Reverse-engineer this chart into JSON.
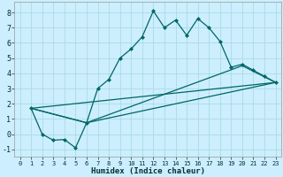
{
  "title": "",
  "xlabel": "Humidex (Indice chaleur)",
  "background_color": "#cceeff",
  "grid_color": "#aadddd",
  "line_color": "#006666",
  "xlim": [
    -0.5,
    23.5
  ],
  "ylim": [
    -1.5,
    8.7
  ],
  "xticks": [
    0,
    1,
    2,
    3,
    4,
    5,
    6,
    7,
    8,
    9,
    10,
    11,
    12,
    13,
    14,
    15,
    16,
    17,
    18,
    19,
    20,
    21,
    22,
    23
  ],
  "yticks": [
    -1,
    0,
    1,
    2,
    3,
    4,
    5,
    6,
    7,
    8
  ],
  "lines": [
    {
      "x": [
        1,
        2,
        3,
        4,
        5,
        6,
        7,
        8,
        9,
        10,
        11,
        12,
        13,
        14,
        15,
        16,
        17,
        18,
        19,
        20,
        21,
        22,
        23
      ],
      "y": [
        1.7,
        0.0,
        -0.4,
        -0.35,
        -0.9,
        0.75,
        3.0,
        3.6,
        5.0,
        5.6,
        6.4,
        8.1,
        7.0,
        7.5,
        6.5,
        7.6,
        7.0,
        6.1,
        4.4,
        4.6,
        4.2,
        3.8,
        3.4
      ],
      "marker": true
    },
    {
      "x": [
        1,
        6,
        23
      ],
      "y": [
        1.7,
        0.75,
        3.4
      ],
      "marker": false
    },
    {
      "x": [
        1,
        6,
        20,
        23
      ],
      "y": [
        1.7,
        0.75,
        4.5,
        3.4
      ],
      "marker": false
    },
    {
      "x": [
        1,
        23
      ],
      "y": [
        1.7,
        3.4
      ],
      "marker": false
    }
  ]
}
